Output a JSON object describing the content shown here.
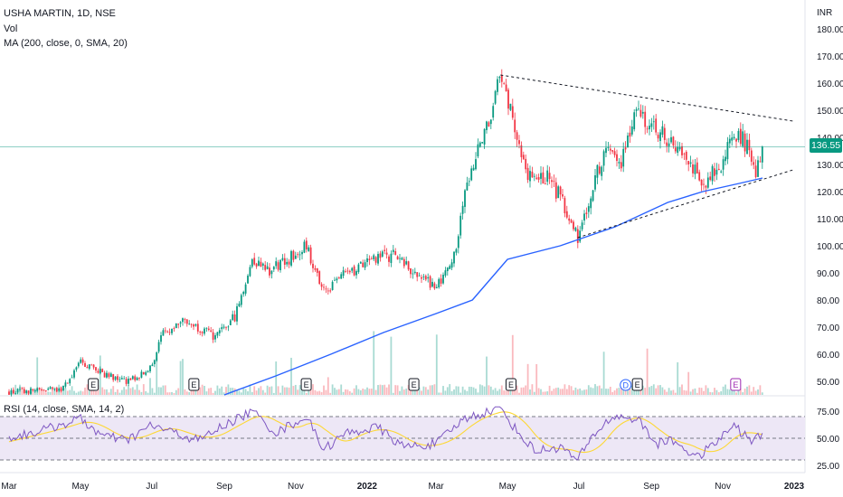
{
  "header": {
    "symbol_line": "USHA MARTIN, 1D, NSE",
    "vol_label": "Vol",
    "ma_label": "MA (200, close, 0, SMA, 20)",
    "rsi_label": "RSI (14, close, SMA, 14, 2)"
  },
  "price_axis": {
    "currency": "INR",
    "ticks": [
      "180.00",
      "170.00",
      "160.00",
      "150.00",
      "140.00",
      "130.00",
      "120.00",
      "110.00",
      "100.00",
      "90.00",
      "80.00",
      "70.00",
      "60.00",
      "50.00"
    ],
    "last_price": "136.55"
  },
  "rsi_axis": {
    "ticks": [
      "75.00",
      "50.00",
      "25.00"
    ]
  },
  "time_axis": {
    "labels": [
      "Mar",
      "May",
      "Jul",
      "Sep",
      "Nov",
      "2022",
      "Mar",
      "May",
      "Jul",
      "Sep",
      "Nov",
      "2023"
    ]
  },
  "events": [
    "E",
    "E",
    "E",
    "E",
    "E",
    "D",
    "E",
    "E"
  ],
  "colors": {
    "up": "#089981",
    "down": "#f23645",
    "ma": "#2962ff",
    "rsi": "#7e57c2",
    "rsi_ma": "#fdd835",
    "rsi_band": "#ede7f6",
    "last_price": "#089981",
    "dividend": "#2962ff"
  },
  "chart_data": [
    {
      "type": "candlestick",
      "title": "USHA MARTIN, 1D, NSE",
      "ylabel": "INR",
      "ylim": [
        45,
        185
      ],
      "x": [
        "2021-03",
        "2021-05",
        "2021-07",
        "2021-09",
        "2021-11",
        "2022-01",
        "2022-03",
        "2022-05",
        "2022-07",
        "2022-09",
        "2022-11",
        "2023-01"
      ],
      "close_path": [
        [
          "2021-03-01",
          46
        ],
        [
          "2021-04-15",
          47
        ],
        [
          "2021-05-01",
          57
        ],
        [
          "2021-05-20",
          53
        ],
        [
          "2021-06-10",
          50
        ],
        [
          "2021-06-25",
          53
        ],
        [
          "2021-07-01",
          56
        ],
        [
          "2021-07-10",
          67
        ],
        [
          "2021-07-25",
          73
        ],
        [
          "2021-08-10",
          70
        ],
        [
          "2021-08-25",
          66
        ],
        [
          "2021-09-10",
          74
        ],
        [
          "2021-09-25",
          95
        ],
        [
          "2021-10-10",
          91
        ],
        [
          "2021-10-25",
          95
        ],
        [
          "2021-11-10",
          100
        ],
        [
          "2021-11-25",
          83
        ],
        [
          "2021-12-15",
          90
        ],
        [
          "2022-01-10",
          95
        ],
        [
          "2022-01-25",
          97
        ],
        [
          "2022-02-10",
          90
        ],
        [
          "2022-03-01",
          85
        ],
        [
          "2022-03-15",
          92
        ],
        [
          "2022-03-25",
          120
        ],
        [
          "2022-04-10",
          140
        ],
        [
          "2022-04-25",
          162
        ],
        [
          "2022-05-05",
          148
        ],
        [
          "2022-05-20",
          125
        ],
        [
          "2022-06-05",
          125
        ],
        [
          "2022-06-15",
          118
        ],
        [
          "2022-06-30",
          103
        ],
        [
          "2022-07-10",
          118
        ],
        [
          "2022-07-25",
          138
        ],
        [
          "2022-08-05",
          130
        ],
        [
          "2022-08-20",
          153
        ],
        [
          "2022-09-01",
          143
        ],
        [
          "2022-09-15",
          140
        ],
        [
          "2022-10-01",
          133
        ],
        [
          "2022-10-15",
          122
        ],
        [
          "2022-10-30",
          130
        ],
        [
          "2022-11-10",
          142
        ],
        [
          "2022-11-20",
          138
        ],
        [
          "2022-11-30",
          127
        ],
        [
          "2022-12-05",
          136.55
        ]
      ],
      "last_close": 136.55
    },
    {
      "type": "line",
      "name": "MA (200, close, 0, SMA, 20)",
      "points": [
        [
          "2021-09-01",
          45
        ],
        [
          "2021-10-15",
          52
        ],
        [
          "2021-12-01",
          60
        ],
        [
          "2022-01-15",
          68
        ],
        [
          "2022-03-01",
          75
        ],
        [
          "2022-04-01",
          80
        ],
        [
          "2022-05-01",
          95
        ],
        [
          "2022-06-15",
          100
        ],
        [
          "2022-08-01",
          107
        ],
        [
          "2022-09-15",
          116
        ],
        [
          "2022-10-15",
          120
        ],
        [
          "2022-11-15",
          123
        ],
        [
          "2022-12-05",
          125
        ]
      ]
    },
    {
      "type": "line",
      "name": "Trend lines",
      "lines": [
        [
          [
            "2022-04-25",
            163
          ],
          [
            "2022-12-31",
            146
          ]
        ],
        [
          [
            "2022-06-30",
            103
          ],
          [
            "2022-12-31",
            128
          ]
        ]
      ]
    },
    {
      "type": "line",
      "name": "RSI (14, close, SMA, 14, 2)",
      "ylim": [
        25,
        75
      ],
      "levels": [
        70,
        50,
        30
      ],
      "points": [
        [
          "2021-03-01",
          50
        ],
        [
          "2021-04-01",
          58
        ],
        [
          "2021-05-01",
          68
        ],
        [
          "2021-05-20",
          52
        ],
        [
          "2021-06-10",
          48
        ],
        [
          "2021-07-01",
          62
        ],
        [
          "2021-07-20",
          55
        ],
        [
          "2021-08-10",
          48
        ],
        [
          "2021-09-01",
          62
        ],
        [
          "2021-09-25",
          75
        ],
        [
          "2021-10-15",
          55
        ],
        [
          "2021-11-10",
          70
        ],
        [
          "2021-11-25",
          40
        ],
        [
          "2021-12-15",
          55
        ],
        [
          "2022-01-10",
          60
        ],
        [
          "2022-02-01",
          42
        ],
        [
          "2022-03-01",
          45
        ],
        [
          "2022-03-25",
          68
        ],
        [
          "2022-04-25",
          78
        ],
        [
          "2022-05-10",
          55
        ],
        [
          "2022-05-25",
          38
        ],
        [
          "2022-06-15",
          42
        ],
        [
          "2022-06-30",
          30
        ],
        [
          "2022-07-15",
          55
        ],
        [
          "2022-07-30",
          70
        ],
        [
          "2022-08-20",
          68
        ],
        [
          "2022-09-05",
          45
        ],
        [
          "2022-09-20",
          48
        ],
        [
          "2022-10-10",
          32
        ],
        [
          "2022-10-25",
          45
        ],
        [
          "2022-11-10",
          62
        ],
        [
          "2022-11-25",
          48
        ],
        [
          "2022-12-05",
          52
        ]
      ]
    }
  ]
}
